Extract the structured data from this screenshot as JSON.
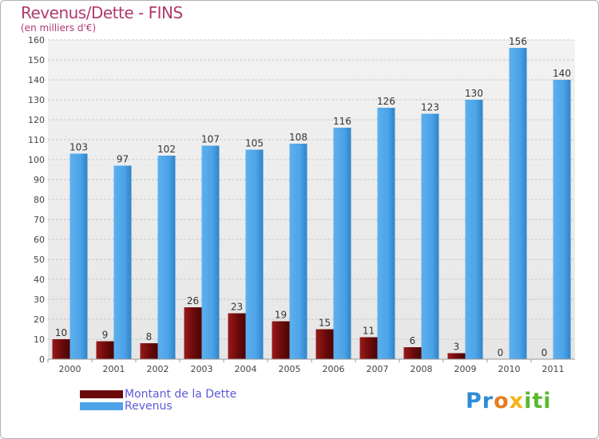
{
  "header": {
    "title": "Revenus/Dette - FINS",
    "subtitle": "(en milliers d'€)"
  },
  "legend": {
    "items": [
      {
        "label": "Montant de la Dette",
        "color": "#6b0a0a"
      },
      {
        "label": "Revenus",
        "color": "#4da3e8"
      }
    ]
  },
  "logo": {
    "text": "Proxiti",
    "colors": [
      "#2e8bd6",
      "#e87c1e",
      "#f2b418",
      "#5bb82f"
    ]
  },
  "chart_data": {
    "type": "bar",
    "title": "Revenus/Dette - FINS",
    "ylabel": "(en milliers d'€)",
    "xlabel": "",
    "ylim": [
      0,
      160
    ],
    "yticks": [
      0,
      10,
      20,
      30,
      40,
      50,
      60,
      70,
      80,
      90,
      100,
      110,
      120,
      130,
      140,
      150,
      160
    ],
    "grid": true,
    "legend_position": "bottom-left",
    "categories": [
      "2000",
      "2001",
      "2002",
      "2003",
      "2004",
      "2005",
      "2006",
      "2007",
      "2008",
      "2009",
      "2010",
      "2011"
    ],
    "series": [
      {
        "name": "Montant de la Dette",
        "color": "#6b0a0a",
        "values": [
          10,
          9,
          8,
          26,
          23,
          19,
          15,
          11,
          6,
          3,
          0,
          0
        ]
      },
      {
        "name": "Revenus",
        "color": "#4da3e8",
        "values": [
          103,
          97,
          102,
          107,
          105,
          108,
          116,
          126,
          123,
          130,
          156,
          140
        ]
      }
    ]
  }
}
